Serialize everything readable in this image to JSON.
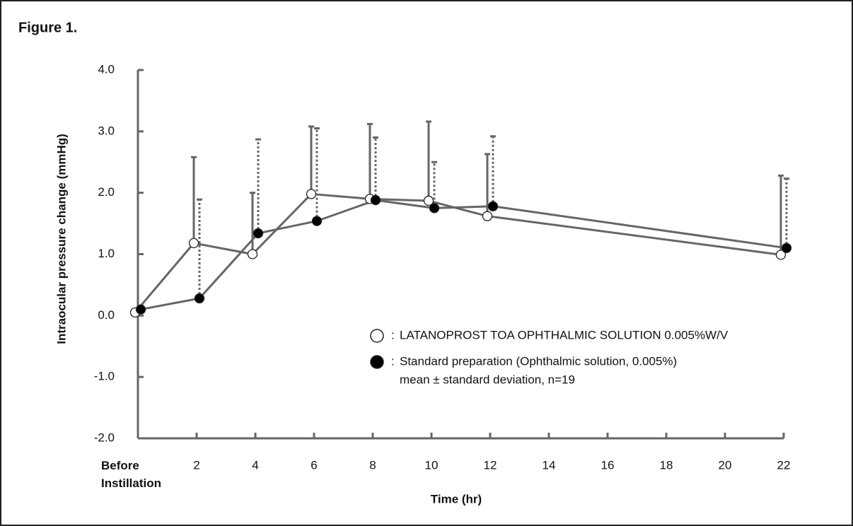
{
  "chart_data": {
    "type": "line",
    "title": "Figure 1.",
    "x_label": "Time (hr)",
    "y_label": "Intraocular pressure change (mmHg)",
    "x": [
      0,
      2,
      4,
      6,
      8,
      10,
      12,
      22
    ],
    "series": [
      {
        "name": "LATANOPROST TOA OPHTHALMIC SOLUTION 0.005%W/V",
        "color": "#666666",
        "marker_fill": "#ffffff",
        "error_style": "solid",
        "values": [
          0.05,
          1.18,
          1.0,
          1.98,
          1.9,
          1.87,
          1.62,
          0.99
        ],
        "errors": [
          null,
          1.4,
          1.0,
          1.1,
          1.22,
          1.29,
          1.01,
          1.29
        ]
      },
      {
        "name": "Standard preparation (Ophthalmic solution, 0.005%)",
        "color": "#666666",
        "marker_fill": "#000000",
        "error_style": "dotted",
        "values": [
          0.1,
          0.28,
          1.34,
          1.54,
          1.88,
          1.75,
          1.78,
          1.1
        ],
        "errors": [
          null,
          1.61,
          1.53,
          1.51,
          1.02,
          0.75,
          1.14,
          1.13
        ]
      }
    ],
    "legend_separator": ":",
    "note": "mean ± standard deviation, n=19",
    "xlim": [
      0,
      22
    ],
    "xticks": [
      {
        "value": 0,
        "label": "Before Instillation"
      },
      2,
      4,
      6,
      8,
      10,
      12,
      14,
      16,
      18,
      20,
      22
    ],
    "ylim": [
      -2,
      4
    ],
    "yticks": [
      {
        "value": -2,
        "label": "-2.0"
      },
      {
        "value": -1,
        "label": "-1.0"
      },
      {
        "value": 0,
        "label": "0.0"
      },
      {
        "value": 1,
        "label": "1.0"
      },
      {
        "value": 2,
        "label": "2.0"
      },
      {
        "value": 3,
        "label": "3.0"
      },
      {
        "value": 4,
        "label": "4.0"
      }
    ],
    "grid": false
  }
}
